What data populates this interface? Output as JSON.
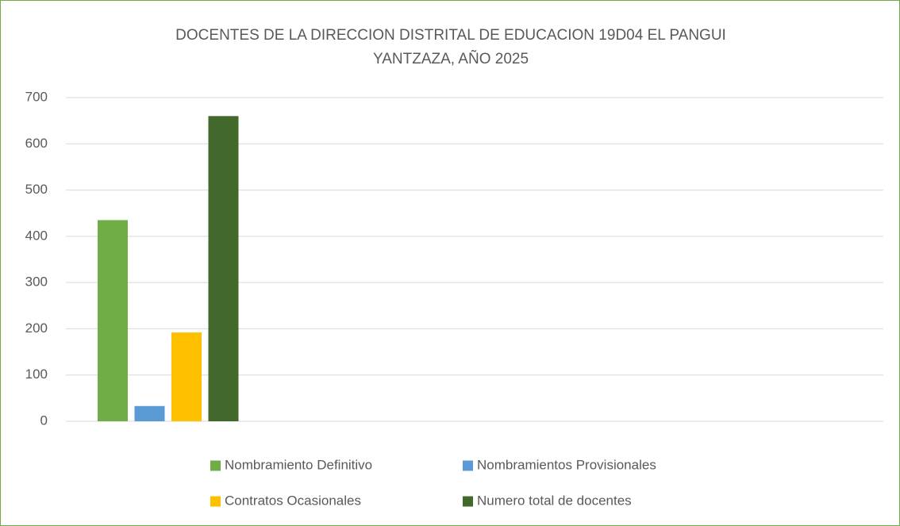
{
  "chart_data": {
    "type": "bar",
    "title": [
      "DOCENTES DE LA DIRECCION DISTRITAL DE EDUCACION 19D04 EL PANGUI",
      "YANTZAZA, AÑO 2025"
    ],
    "categories": [
      null,
      null,
      null,
      null
    ],
    "series": [
      {
        "name": "Nombramiento Definitivo",
        "color": "#70ad47",
        "values": [
          435,
          null,
          null,
          null
        ]
      },
      {
        "name": "Nombramientos Provisionales",
        "color": "#5b9bd5",
        "values": [
          33,
          null,
          null,
          null
        ]
      },
      {
        "name": "Contratos Ocasionales",
        "color": "#ffc000",
        "values": [
          192,
          null,
          null,
          null
        ]
      },
      {
        "name": "Numero total de docentes",
        "color": "#43682b",
        "values": [
          660,
          null,
          null,
          null
        ]
      }
    ],
    "ylim": [
      0,
      700
    ],
    "yticks": [
      0,
      100,
      200,
      300,
      400,
      500,
      600,
      700
    ],
    "grid": true,
    "legend": "bottom"
  }
}
